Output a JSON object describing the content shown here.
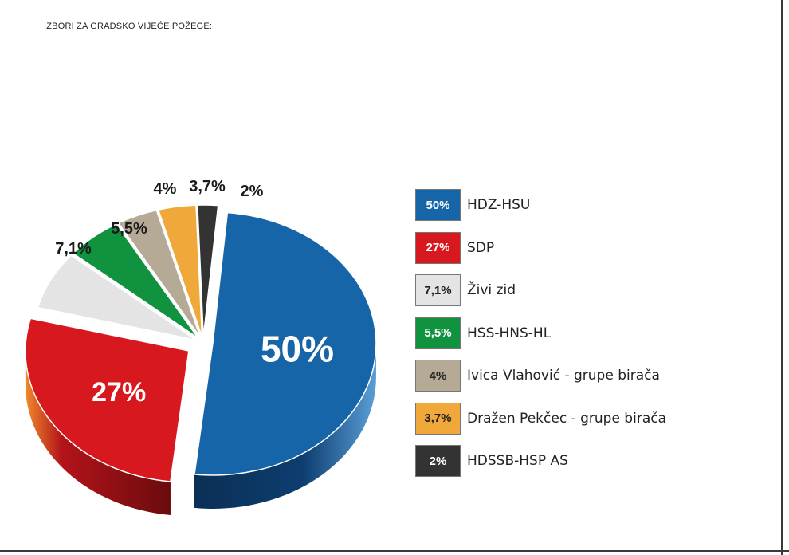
{
  "title": "IZBORI ZA GRADSKO VIJEĆE POŽEGE:",
  "chart_data": {
    "type": "pie",
    "title": "IZBORI ZA GRADSKO VIJEĆE POŽEGE:",
    "legend_position": "right",
    "slices": [
      {
        "name": "HDZ-HSU",
        "value": 50,
        "label": "50%",
        "color": "#1565a8",
        "dark": "#0b2f55",
        "text_color": "#ffffff"
      },
      {
        "name": "SDP",
        "value": 27,
        "label": "27%",
        "color": "#d7191f",
        "dark": "#7a0d10",
        "text_color": "#ffffff"
      },
      {
        "name": "Živi zid",
        "value": 7.1,
        "label": "7,1%",
        "color": "#e4e4e4",
        "dark": "#9a9a9a",
        "text_color": "#222222"
      },
      {
        "name": "HSS-HNS-HL",
        "value": 5.5,
        "label": "5,5%",
        "color": "#10923f",
        "dark": "#075222",
        "text_color": "#ffffff"
      },
      {
        "name": "Ivica Vlahović - grupe birača",
        "value": 4,
        "label": "4%",
        "color": "#b4aa95",
        "dark": "#6c6453",
        "text_color": "#222222"
      },
      {
        "name": "Dražen Pekčec - grupe birača",
        "value": 3.7,
        "label": "3,7%",
        "color": "#f0a83a",
        "dark": "#9a6312",
        "text_color": "#222222"
      },
      {
        "name": "HDSSB-HSP AS",
        "value": 2,
        "label": "2%",
        "color": "#333333",
        "dark": "#111111",
        "text_color": "#ffffff"
      }
    ]
  }
}
